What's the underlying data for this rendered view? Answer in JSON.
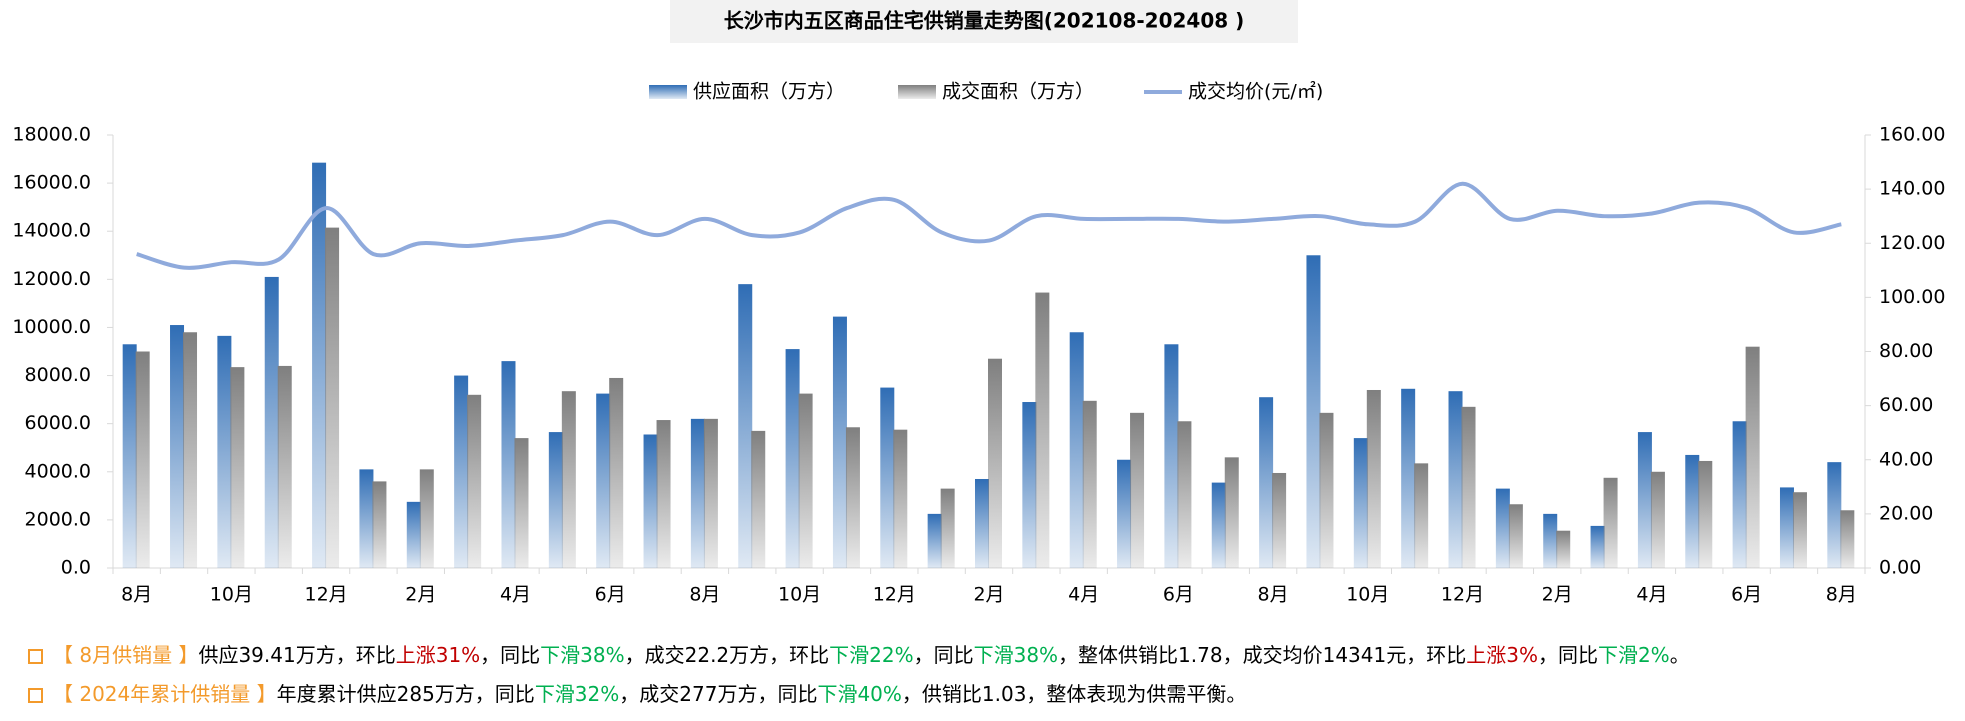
{
  "chart_data": {
    "type": "bar_line",
    "title": "长沙市内五区商品住宅供销量走势图(202108-202408 )",
    "categories": [
      "8月",
      null,
      "10月",
      null,
      "12月",
      null,
      "2月",
      null,
      "4月",
      null,
      "6月",
      null,
      "8月",
      null,
      "10月",
      null,
      "12月",
      null,
      "2月",
      null,
      "4月",
      null,
      "6月",
      null,
      "8月",
      null,
      "10月",
      null,
      "12月",
      null,
      "2月",
      null,
      "4月",
      null,
      "6月",
      null,
      "8月"
    ],
    "series": [
      {
        "name": "供应面积（万方）",
        "color": "#2f6db5",
        "type": "bar",
        "values": [
          9300,
          10100,
          9650,
          12100,
          16850,
          4100,
          2750,
          8000,
          8600,
          5650,
          7250,
          5550,
          6200,
          11800,
          9100,
          10450,
          7500,
          2250,
          3700,
          6900,
          9800,
          4500,
          9300,
          3550,
          7100,
          13000,
          5400,
          7450,
          7350,
          3300,
          2250,
          1750,
          5650,
          4700,
          6100,
          3350,
          4400
        ]
      },
      {
        "name": "成交面积（万方）",
        "color": "#7f7f7f",
        "type": "bar",
        "values": [
          9000,
          9800,
          8350,
          8400,
          14150,
          3600,
          4100,
          7200,
          5400,
          7350,
          7900,
          6150,
          6200,
          5700,
          7250,
          5850,
          5750,
          3300,
          8700,
          11450,
          6950,
          6450,
          6100,
          4600,
          3950,
          6450,
          7400,
          4350,
          6700,
          2650,
          1550,
          3750,
          4000,
          4450,
          9200,
          3150,
          2400
        ]
      },
      {
        "name": "成交均价(元/㎡)",
        "color": "#8faadc",
        "type": "line",
        "axis": "y2",
        "values": [
          116,
          111,
          113,
          114,
          133,
          116,
          120,
          119,
          121,
          123,
          128,
          123,
          129,
          123,
          124,
          133,
          136,
          124,
          121,
          130,
          129,
          129,
          129,
          128,
          129,
          130,
          127,
          128,
          142,
          129,
          132,
          130,
          131,
          135,
          133,
          124,
          127
        ]
      }
    ],
    "ylim": [
      0,
      18000
    ],
    "yticks": [
      {
        "value": 0,
        "label": "0.0"
      },
      {
        "value": 2000,
        "label": "2000.0"
      },
      {
        "value": 4000,
        "label": "4000.0"
      },
      {
        "value": 6000,
        "label": "6000.0"
      },
      {
        "value": 8000,
        "label": "8000.0"
      },
      {
        "value": 10000,
        "label": "10000.0"
      },
      {
        "value": 12000,
        "label": "12000.0"
      },
      {
        "value": 14000,
        "label": "14000.0"
      },
      {
        "value": 16000,
        "label": "16000.0"
      },
      {
        "value": 18000,
        "label": "18000.0"
      }
    ],
    "y2lim": [
      0,
      160
    ],
    "y2ticks": [
      {
        "value": 0,
        "label": "0.00"
      },
      {
        "value": 20,
        "label": "20.00"
      },
      {
        "value": 40,
        "label": "40.00"
      },
      {
        "value": 60,
        "label": "60.00"
      },
      {
        "value": 80,
        "label": "80.00"
      },
      {
        "value": 100,
        "label": "100.00"
      },
      {
        "value": 120,
        "label": "120.00"
      },
      {
        "value": 140,
        "label": "140.00"
      },
      {
        "value": 160,
        "label": "160.00"
      }
    ],
    "grid": false,
    "legend": "top"
  },
  "notes": [
    {
      "segments": [
        {
          "text": "【 8月供销量 】",
          "color": "#f39a2b"
        },
        {
          "text": "供应39.41万方，环比"
        },
        {
          "text": "上涨31%",
          "color": "#c00000"
        },
        {
          "text": "，同比"
        },
        {
          "text": "下滑38%",
          "color": "#00b050"
        },
        {
          "text": "，成交22.2万方，环比"
        },
        {
          "text": "下滑22%",
          "color": "#00b050"
        },
        {
          "text": "，同比"
        },
        {
          "text": "下滑38%",
          "color": "#00b050"
        },
        {
          "text": "，整体供销比1.78，成交均价14341元，环比"
        },
        {
          "text": "上涨3%",
          "color": "#c00000"
        },
        {
          "text": "，同比"
        },
        {
          "text": "下滑2%",
          "color": "#00b050"
        },
        {
          "text": "。"
        }
      ]
    },
    {
      "segments": [
        {
          "text": "【 2024年累计供销量 】",
          "color": "#f39a2b"
        },
        {
          "text": "年度累计供应285万方，同比"
        },
        {
          "text": "下滑32%",
          "color": "#00b050"
        },
        {
          "text": "，成交277万方，同比"
        },
        {
          "text": "下滑40%",
          "color": "#00b050"
        },
        {
          "text": "，供销比1.03，整体表现为供需平衡。"
        }
      ]
    }
  ]
}
